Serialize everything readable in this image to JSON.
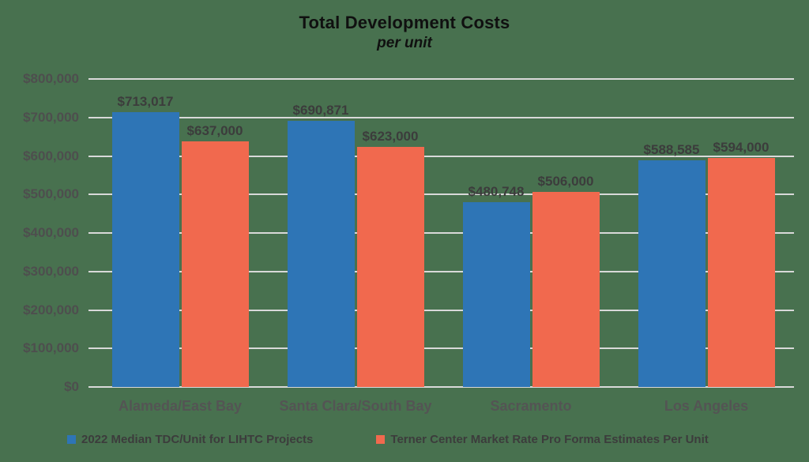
{
  "chart_data": {
    "type": "bar",
    "title": "Total Development Costs",
    "subtitle": "per unit",
    "categories": [
      "Alameda/East Bay",
      "Santa Clara/South Bay",
      "Sacramento",
      "Los Angeles"
    ],
    "series": [
      {
        "name": "2022 Median TDC/Unit for LIHTC Projects",
        "color": "#2E75B6",
        "values": [
          713017,
          690871,
          480748,
          588585
        ],
        "labels": [
          "$713,017",
          "$690,871",
          "$480,748",
          "$588,585"
        ]
      },
      {
        "name": "Terner Center Market Rate Pro Forma Estimates Per Unit",
        "color": "#F1694E",
        "values": [
          637000,
          623000,
          506000,
          594000
        ],
        "labels": [
          "$637,000",
          "$623,000",
          "$506,000",
          "$594,000"
        ]
      }
    ],
    "y_axis": {
      "min": 0,
      "max": 800000,
      "step": 100000,
      "tick_labels": [
        "$0",
        "$100,000",
        "$200,000",
        "$300,000",
        "$400,000",
        "$500,000",
        "$600,000",
        "$700,000",
        "$800,000"
      ]
    },
    "grid": true,
    "legend_position": "bottom",
    "colors": {
      "background": "#48714F",
      "gridline": "#D9D9D9",
      "title_text": "#101010",
      "axis_text": "#4E4E4E",
      "value_label_text": "#3C3C3C"
    }
  }
}
